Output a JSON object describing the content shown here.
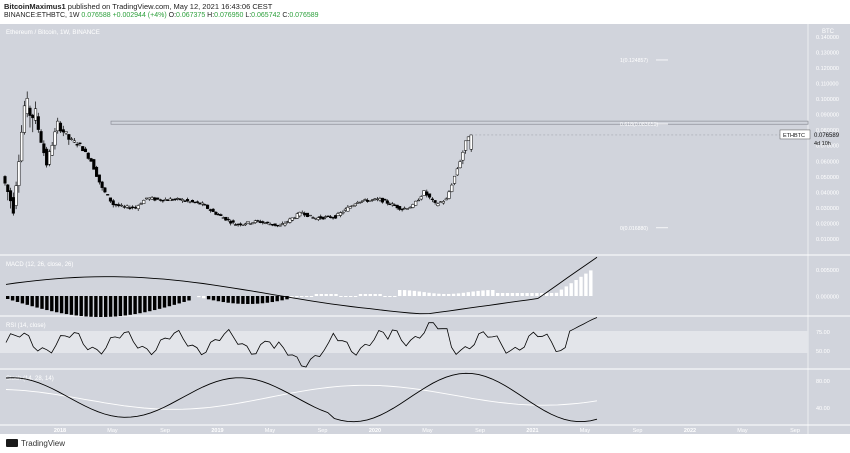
{
  "header": {
    "author": "BitcoinMaximus1",
    "published": "published on TradingView.com, May 12, 2021 16:43:06 CEST",
    "symbol": "BINANCE:ETHBTC, 1W",
    "last": "0.076588",
    "change": "+0.002944 (+4%)",
    "o_label": "O:",
    "o": "0.067375",
    "h_label": "H:",
    "h": "0.076950",
    "l_label": "L:",
    "l": "0.065742",
    "c_label": "C:",
    "c": "0.076589"
  },
  "chart_data": {
    "type": "candlestick",
    "title": "Ethereum / Bitcoin, 1W, BINANCE",
    "price_axis_unit": "BTC",
    "price_ticks": [
      0.14,
      0.13,
      0.12,
      0.11,
      0.1,
      0.09,
      0.08,
      0.07,
      0.06,
      0.05,
      0.04,
      0.03,
      0.02,
      0.01
    ],
    "price_tick_labels": [
      "0.140000",
      "0.130000",
      "0.120000",
      "0.110000",
      "0.100000",
      "0.090000",
      "0.080000",
      "0.070000",
      "0.060000",
      "0.050000",
      "0.040000",
      "0.030000",
      "0.020000",
      "0.010000"
    ],
    "ylim": [
      0.0,
      0.148
    ],
    "current_price_label": "ETHBTC",
    "current_price": "0.076589",
    "countdown": "4d 10h",
    "fib_levels": [
      {
        "label": "1(0.124857)",
        "value": 0.124857
      },
      {
        "label": "0.618(0.083659)",
        "value": 0.083659
      },
      {
        "label": "0(0.016880)",
        "value": 0.01688
      }
    ],
    "resistance_zone": [
      0.0835,
      0.0855
    ],
    "time_labels": [
      "2018",
      "May",
      "Sep",
      "2019",
      "May",
      "Sep",
      "2020",
      "May",
      "Sep",
      "2021",
      "May",
      "Sep",
      "2022",
      "May",
      "Sep"
    ],
    "price_path": [
      [
        "2017-11",
        0.05,
        0.075,
        0.025
      ],
      [
        "2017-12",
        0.03,
        0.06,
        0.022
      ],
      [
        "2018-01",
        0.095,
        0.124,
        0.045
      ],
      [
        "2018-02",
        0.088,
        0.1,
        0.075
      ],
      [
        "2018-03",
        0.058,
        0.075,
        0.052
      ],
      [
        "2018-04",
        0.084,
        0.088,
        0.06
      ],
      [
        "2018-05",
        0.074,
        0.082,
        0.066
      ],
      [
        "2018-06",
        0.07,
        0.075,
        0.062
      ],
      [
        "2018-07",
        0.06,
        0.068,
        0.052
      ],
      [
        "2018-08",
        0.042,
        0.05,
        0.035
      ],
      [
        "2018-09",
        0.032,
        0.038,
        0.027
      ],
      [
        "2018-10",
        0.03,
        0.034,
        0.028
      ],
      [
        "2018-11",
        0.03,
        0.034,
        0.028
      ],
      [
        "2018-12",
        0.036,
        0.04,
        0.028
      ],
      [
        "2019-01",
        0.035,
        0.038,
        0.031
      ],
      [
        "2019-03",
        0.035,
        0.038,
        0.032
      ],
      [
        "2019-05",
        0.032,
        0.035,
        0.029
      ],
      [
        "2019-06",
        0.027,
        0.03,
        0.024
      ],
      [
        "2019-08",
        0.019,
        0.024,
        0.017
      ],
      [
        "2019-10",
        0.021,
        0.023,
        0.019
      ],
      [
        "2019-12",
        0.018,
        0.02,
        0.017
      ],
      [
        "2020-02",
        0.027,
        0.029,
        0.022
      ],
      [
        "2020-03",
        0.023,
        0.026,
        0.02
      ],
      [
        "2020-05",
        0.024,
        0.026,
        0.022
      ],
      [
        "2020-07",
        0.034,
        0.036,
        0.029
      ],
      [
        "2020-09",
        0.035,
        0.04,
        0.032
      ],
      [
        "2020-11",
        0.029,
        0.032,
        0.027
      ],
      [
        "2020-12",
        0.031,
        0.034,
        0.023
      ],
      [
        "2021-01",
        0.04,
        0.047,
        0.033
      ],
      [
        "2021-02",
        0.032,
        0.04,
        0.03
      ],
      [
        "2021-03",
        0.035,
        0.038,
        0.03
      ],
      [
        "2021-04",
        0.055,
        0.058,
        0.037
      ],
      [
        "2021-05",
        0.0766,
        0.077,
        0.0657
      ]
    ],
    "panes": [
      {
        "name": "MACD (12, 26, close, 26)",
        "ticks": [
          "0.000000",
          "0.005000"
        ]
      },
      {
        "name": "RSI (14, close)",
        "ticks": [
          "50.00",
          "75.00"
        ]
      },
      {
        "name": "Stoch (14, 28, 14)",
        "ticks": [
          "40.00",
          "80.00"
        ]
      }
    ]
  },
  "footer": {
    "brand": "TradingView"
  },
  "colors": {
    "pane_bg": "#d1d4dc",
    "pane_line": "#ffffff",
    "candle_up": "#ffffff",
    "candle_down": "#000000",
    "text": "#ffffff",
    "axis_text": "#ffffff"
  }
}
